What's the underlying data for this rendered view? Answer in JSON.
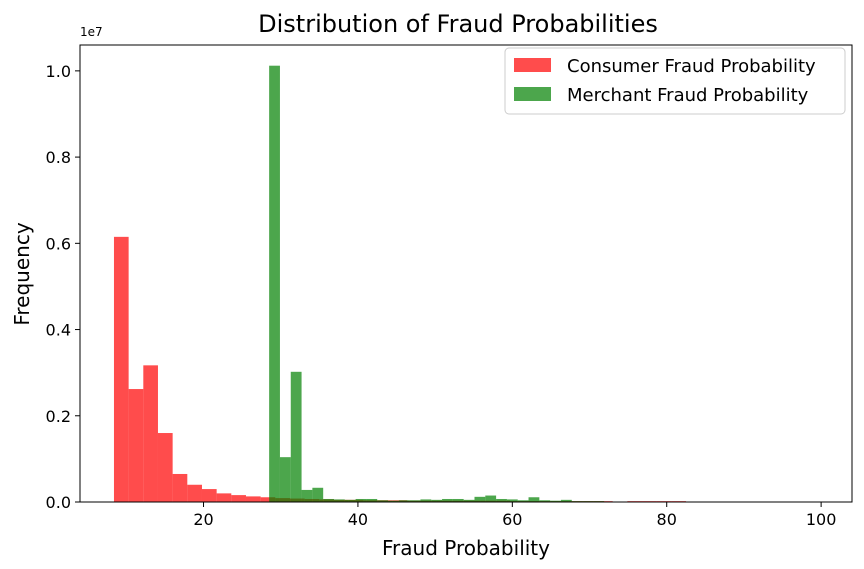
{
  "chart_data": {
    "type": "bar",
    "subtype": "histogram-overlay",
    "title": "Distribution of Fraud Probabilities",
    "xlabel": "Fraud Probability",
    "ylabel": "Frequency",
    "y_scale_label": "1e7",
    "xlim": [
      4,
      104
    ],
    "ylim": [
      0,
      1.06
    ],
    "x_ticks": [
      20,
      40,
      60,
      80,
      100
    ],
    "y_ticks": [
      0.0,
      0.2,
      0.4,
      0.6,
      0.8,
      1.0
    ],
    "x_tick_labels": [
      "20",
      "40",
      "60",
      "80",
      "100"
    ],
    "y_tick_labels": [
      "0.0",
      "0.2",
      "0.4",
      "0.6",
      "0.8",
      "1.0"
    ],
    "grid": false,
    "legend_position": "top-right",
    "series": [
      {
        "name": "Consumer Fraud Probability",
        "color": "#ff0000",
        "opacity": 0.7,
        "bins": [
          [
            8.4,
            10.3,
            0.615
          ],
          [
            10.3,
            12.2,
            0.262
          ],
          [
            12.2,
            14.1,
            0.317
          ],
          [
            14.1,
            16.0,
            0.16
          ],
          [
            16.0,
            17.9,
            0.065
          ],
          [
            17.9,
            19.8,
            0.04
          ],
          [
            19.8,
            21.7,
            0.03
          ],
          [
            21.7,
            23.6,
            0.02
          ],
          [
            23.6,
            25.5,
            0.016
          ],
          [
            25.5,
            27.4,
            0.013
          ],
          [
            27.4,
            29.3,
            0.011
          ],
          [
            29.3,
            31.2,
            0.009
          ],
          [
            31.2,
            33.1,
            0.008
          ],
          [
            33.1,
            35.0,
            0.007
          ],
          [
            35.0,
            36.9,
            0.006
          ],
          [
            36.9,
            38.8,
            0.005
          ],
          [
            38.8,
            40.7,
            0.005
          ],
          [
            40.7,
            42.6,
            0.004
          ],
          [
            42.6,
            44.5,
            0.004
          ],
          [
            44.5,
            46.4,
            0.004
          ],
          [
            46.4,
            48.3,
            0.003
          ],
          [
            48.3,
            50.2,
            0.003
          ],
          [
            50.2,
            52.1,
            0.003
          ],
          [
            52.1,
            54.0,
            0.003
          ],
          [
            54.0,
            55.9,
            0.003
          ],
          [
            55.9,
            57.8,
            0.003
          ],
          [
            57.8,
            59.7,
            0.003
          ],
          [
            59.7,
            61.6,
            0.002
          ],
          [
            61.6,
            63.5,
            0.002
          ],
          [
            63.5,
            65.4,
            0.002
          ],
          [
            65.4,
            67.3,
            0.002
          ],
          [
            67.3,
            69.2,
            0.002
          ],
          [
            69.2,
            71.1,
            0.002
          ],
          [
            71.1,
            73.0,
            0.002
          ],
          [
            73.0,
            74.9,
            0.001
          ],
          [
            74.9,
            76.8,
            0.002
          ],
          [
            76.8,
            78.7,
            0.002
          ],
          [
            78.7,
            80.6,
            0.002
          ],
          [
            80.6,
            82.5,
            0.002
          ],
          [
            82.5,
            84.4,
            0.001
          ]
        ]
      },
      {
        "name": "Merchant Fraud Probability",
        "color": "#008000",
        "opacity": 0.7,
        "bins": [
          [
            28.5,
            29.9,
            1.012
          ],
          [
            29.9,
            31.3,
            0.104
          ],
          [
            31.3,
            32.7,
            0.302
          ],
          [
            32.7,
            34.1,
            0.028
          ],
          [
            34.1,
            35.5,
            0.033
          ],
          [
            35.5,
            36.9,
            0.007
          ],
          [
            36.9,
            38.3,
            0.006
          ],
          [
            38.3,
            39.7,
            0.005
          ],
          [
            39.7,
            41.1,
            0.007
          ],
          [
            41.1,
            42.5,
            0.007
          ],
          [
            42.5,
            43.9,
            0.004
          ],
          [
            43.9,
            45.3,
            0.003
          ],
          [
            45.3,
            46.7,
            0.004
          ],
          [
            46.7,
            48.1,
            0.004
          ],
          [
            48.1,
            49.5,
            0.006
          ],
          [
            49.5,
            50.9,
            0.005
          ],
          [
            50.9,
            52.3,
            0.007
          ],
          [
            52.3,
            53.7,
            0.007
          ],
          [
            53.7,
            55.1,
            0.005
          ],
          [
            55.1,
            56.5,
            0.012
          ],
          [
            56.5,
            57.9,
            0.015
          ],
          [
            57.9,
            59.3,
            0.007
          ],
          [
            59.3,
            60.7,
            0.006
          ],
          [
            60.7,
            62.1,
            0.004
          ],
          [
            62.1,
            63.5,
            0.011
          ],
          [
            63.5,
            64.9,
            0.004
          ],
          [
            64.9,
            66.3,
            0.003
          ],
          [
            66.3,
            67.7,
            0.005
          ],
          [
            67.7,
            69.1,
            0.002
          ],
          [
            69.1,
            70.5,
            0.002
          ],
          [
            70.5,
            71.9,
            0.002
          ],
          [
            71.9,
            73.3,
            0.001
          ],
          [
            73.3,
            74.7,
            0.001
          ],
          [
            74.7,
            76.1,
            0.001
          ],
          [
            76.1,
            77.5,
            0.001
          ],
          [
            77.5,
            78.9,
            0.001
          ],
          [
            78.9,
            80.3,
            0.001
          ],
          [
            80.3,
            81.7,
            0.001
          ],
          [
            81.7,
            83.1,
            0.001
          ],
          [
            83.1,
            84.5,
            0.001
          ],
          [
            84.5,
            85.9,
            0.001
          ],
          [
            85.9,
            87.3,
            0.001
          ],
          [
            87.3,
            88.7,
            0.001
          ],
          [
            88.7,
            90.1,
            0.001
          ],
          [
            90.1,
            91.5,
            0.001
          ],
          [
            91.5,
            92.9,
            0.001
          ],
          [
            92.9,
            94.3,
            0.001
          ],
          [
            94.3,
            95.7,
            0.001
          ],
          [
            95.7,
            97.1,
            0.001
          ],
          [
            97.1,
            98.5,
            0.001
          ]
        ]
      }
    ]
  }
}
